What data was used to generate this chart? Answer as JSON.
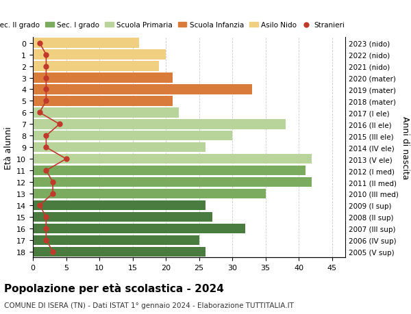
{
  "ages": [
    18,
    17,
    16,
    15,
    14,
    13,
    12,
    11,
    10,
    9,
    8,
    7,
    6,
    5,
    4,
    3,
    2,
    1,
    0
  ],
  "years": [
    "2005 (V sup)",
    "2006 (IV sup)",
    "2007 (III sup)",
    "2008 (II sup)",
    "2009 (I sup)",
    "2010 (III med)",
    "2011 (II med)",
    "2012 (I med)",
    "2013 (V ele)",
    "2014 (IV ele)",
    "2015 (III ele)",
    "2016 (II ele)",
    "2017 (I ele)",
    "2018 (mater)",
    "2019 (mater)",
    "2020 (mater)",
    "2021 (nido)",
    "2022 (nido)",
    "2023 (nido)"
  ],
  "values": [
    26,
    25,
    32,
    27,
    26,
    35,
    42,
    41,
    42,
    26,
    30,
    38,
    22,
    21,
    33,
    21,
    19,
    20,
    16
  ],
  "stranieri": [
    3,
    2,
    2,
    2,
    1,
    3,
    3,
    2,
    5,
    2,
    2,
    4,
    1,
    2,
    2,
    2,
    2,
    2,
    1
  ],
  "bar_colors": [
    "#4a7c3f",
    "#4a7c3f",
    "#4a7c3f",
    "#4a7c3f",
    "#4a7c3f",
    "#7aab5e",
    "#7aab5e",
    "#7aab5e",
    "#b8d49a",
    "#b8d49a",
    "#b8d49a",
    "#b8d49a",
    "#b8d49a",
    "#d97b3a",
    "#d97b3a",
    "#d97b3a",
    "#f0d080",
    "#f0d080",
    "#f0d080"
  ],
  "legend_labels": [
    "Sec. II grado",
    "Sec. I grado",
    "Scuola Primaria",
    "Scuola Infanzia",
    "Asilo Nido",
    "Stranieri"
  ],
  "legend_colors": [
    "#4a7c3f",
    "#7aab5e",
    "#b8d49a",
    "#d97b3a",
    "#f0d080",
    "#c0392b"
  ],
  "stranieri_color": "#c0392b",
  "ylabel": "Età alunni",
  "right_label": "Anni di nascita",
  "title": "Popolazione per età scolastica - 2024",
  "subtitle": "COMUNE DI ISERA (TN) - Dati ISTAT 1° gennaio 2024 - Elaborazione TUTTITALIA.IT",
  "xlim": [
    0,
    47
  ],
  "background_color": "#ffffff",
  "grid_color": "#cccccc"
}
